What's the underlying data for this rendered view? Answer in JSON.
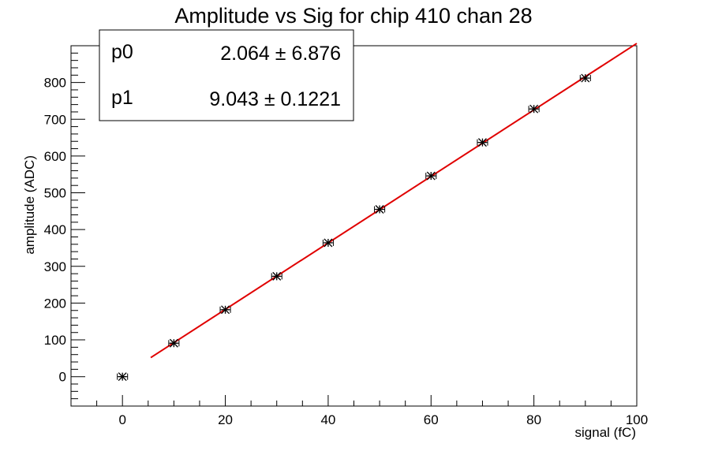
{
  "chart_data": {
    "type": "scatter",
    "title": "Amplitude vs Sig for chip 410 chan 28",
    "xlabel": "signal (fC)",
    "ylabel": "amplitude (ADC)",
    "xlim": [
      -10,
      100
    ],
    "ylim": [
      -80,
      900
    ],
    "x_ticks": [
      0,
      20,
      40,
      60,
      80,
      100
    ],
    "y_ticks": [
      0,
      100,
      200,
      300,
      400,
      500,
      600,
      700,
      800
    ],
    "x_tick_labels": [
      "0",
      "20",
      "40",
      "60",
      "80",
      "100"
    ],
    "y_tick_labels": [
      "0",
      "100",
      "200",
      "300",
      "400",
      "500",
      "600",
      "700",
      "800"
    ],
    "grid": false,
    "points": {
      "x": [
        0,
        10,
        20,
        30,
        40,
        50,
        60,
        70,
        80,
        90
      ],
      "y": [
        0,
        91,
        182,
        273,
        364,
        455,
        546,
        637,
        728,
        812
      ],
      "x_err": [
        1,
        1,
        1,
        1,
        1,
        1,
        1,
        1,
        1,
        1
      ],
      "y_err": [
        0,
        0,
        0,
        0,
        0,
        0,
        0,
        0,
        0,
        0
      ],
      "marker": "star",
      "color": "#000000"
    },
    "fit": {
      "p0": 2.064,
      "p1": 9.043,
      "x_range": [
        5.5,
        100
      ],
      "color": "#e00000"
    },
    "stats_box": {
      "rows": [
        {
          "name": "p0",
          "value": "2.064 ± 6.876"
        },
        {
          "name": "p1",
          "value": "9.043 ± 0.1221"
        }
      ]
    }
  }
}
